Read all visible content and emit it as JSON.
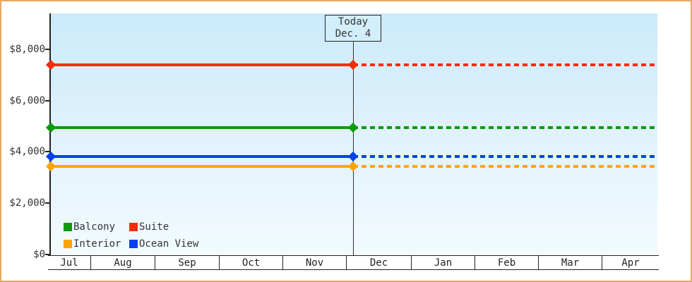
{
  "page": {
    "border_color": "#e6a960",
    "background": "#ffffff",
    "plot_bg_top": "#cbeafa",
    "plot_bg_bottom": "#f2fafe",
    "axis_color": "#222222",
    "text_color": "#333333"
  },
  "today_marker": {
    "title": "Today",
    "date": "Dec. 4"
  },
  "chart_data": {
    "type": "line",
    "title": "",
    "xlabel": "",
    "ylabel": "",
    "x_categories": [
      "Jul",
      "Aug",
      "Sep",
      "Oct",
      "Nov",
      "Dec",
      "Jan",
      "Feb",
      "Mar",
      "Apr"
    ],
    "ylim": [
      0,
      8000
    ],
    "y_ticks": [
      {
        "value": 0,
        "label": "$0"
      },
      {
        "value": 2000,
        "label": "$2,000"
      },
      {
        "value": 4000,
        "label": "$4,000"
      },
      {
        "value": 6000,
        "label": "$6,000"
      },
      {
        "value": 8000,
        "label": "$8,000"
      }
    ],
    "grid": false,
    "today_x_category": "Dec",
    "today_date": "Dec. 4",
    "series": [
      {
        "name": "Suite",
        "color": "#f32d08",
        "value": 7400,
        "style_before_today": "solid",
        "style_after_today": "dashed",
        "marker": "diamond"
      },
      {
        "name": "Balcony",
        "color": "#089c08",
        "value": 4940,
        "style_before_today": "solid",
        "style_after_today": "dashed",
        "marker": "diamond"
      },
      {
        "name": "Ocean View",
        "color": "#0440f0",
        "value": 3820,
        "style_before_today": "solid",
        "style_after_today": "dashed",
        "marker": "diamond"
      },
      {
        "name": "Interior",
        "color": "#ffa408",
        "value": 3440,
        "style_before_today": "solid",
        "style_after_today": "dashed",
        "marker": "diamond"
      }
    ],
    "legend_position": "bottom-left-inside",
    "legend": [
      {
        "label": "Balcony",
        "color": "#089c08"
      },
      {
        "label": "Suite",
        "color": "#f32d08"
      },
      {
        "label": "Interior",
        "color": "#ffa408"
      },
      {
        "label": "Ocean View",
        "color": "#0440f0"
      }
    ]
  }
}
